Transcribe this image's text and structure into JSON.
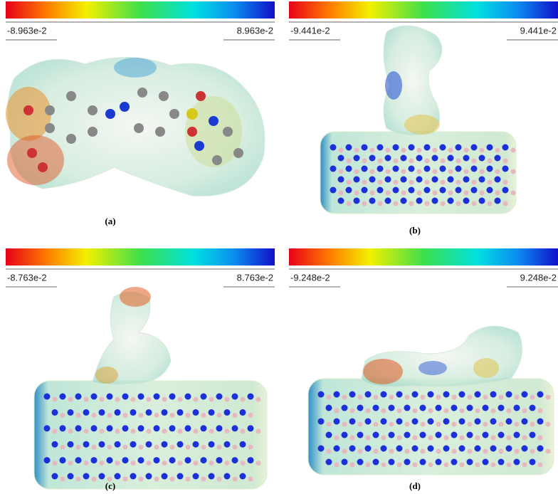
{
  "panels": [
    {
      "scale_min": "-8.963e-2",
      "scale_max": "8.963e-2",
      "caption": "(a)"
    },
    {
      "scale_min": "-9.441e-2",
      "scale_max": "9.441e-2",
      "caption": "(b)"
    },
    {
      "scale_min": "-8.763e-2",
      "scale_max": "8.763e-2",
      "caption": "(c)"
    },
    {
      "scale_min": "-9.248e-2",
      "scale_max": "9.248e-2",
      "caption": "(d)"
    }
  ]
}
